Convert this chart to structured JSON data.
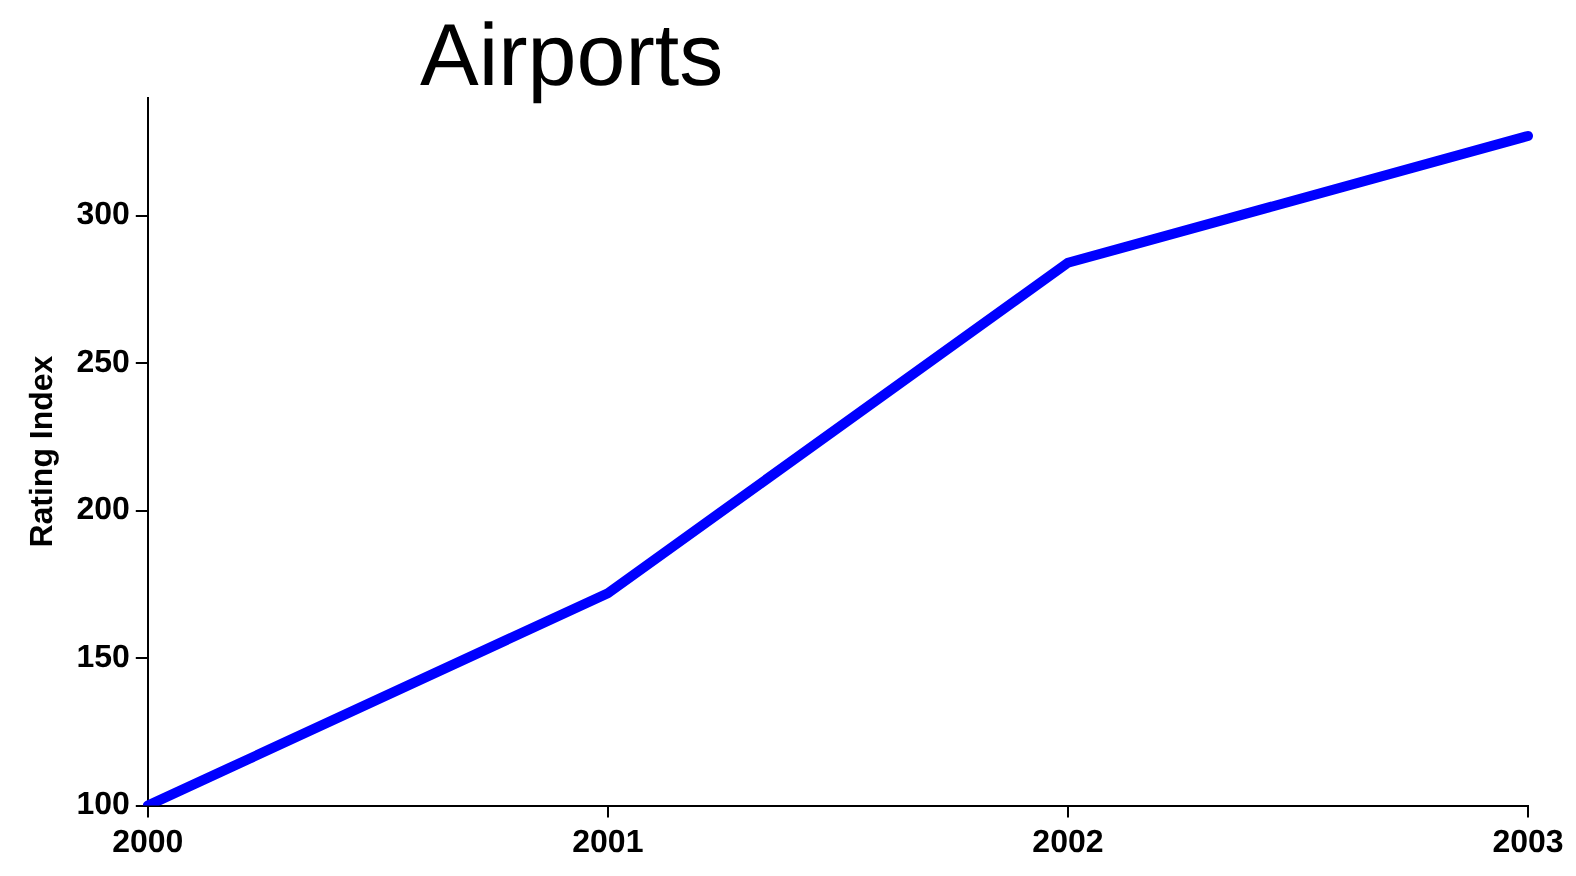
{
  "chart_data": {
    "type": "line",
    "title": "Airports",
    "ylabel": "Rating Index",
    "categories": [
      "2000",
      "2001",
      "2002",
      "2003"
    ],
    "series": [
      {
        "color": "#0000ff",
        "values": [
          100,
          172,
          284,
          327
        ]
      }
    ],
    "ylim": [
      100,
      340
    ],
    "yticks": [
      100,
      150,
      200,
      250,
      300
    ],
    "grid": false,
    "legend": false,
    "marker": "none",
    "line_style": "solid"
  }
}
